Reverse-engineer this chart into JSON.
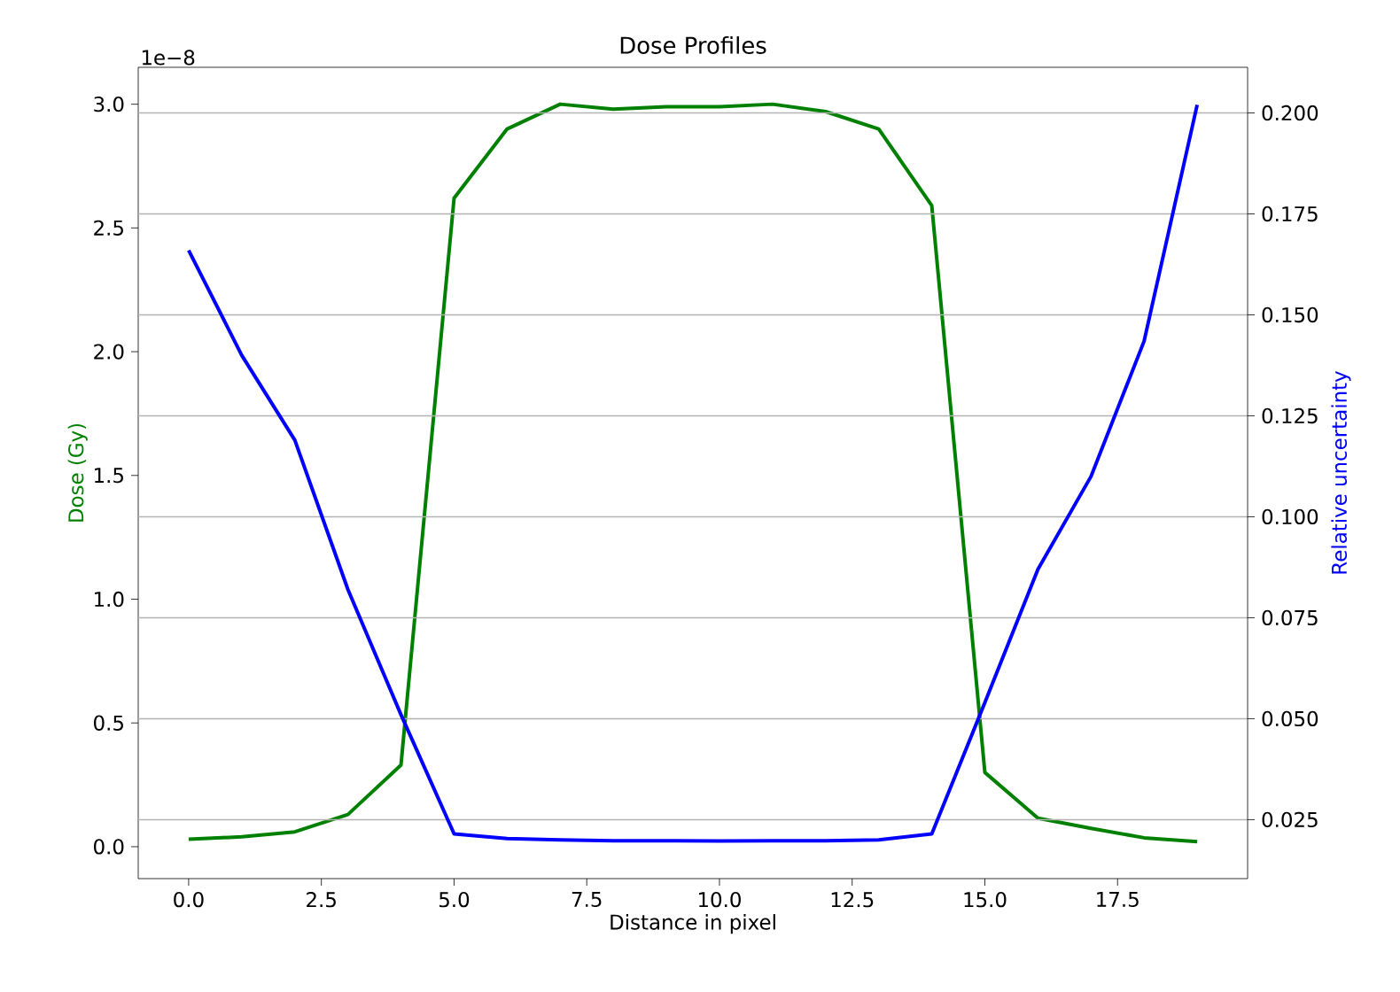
{
  "chart_data": {
    "type": "line",
    "title": "Dose Profiles",
    "xlabel": "Distance in pixel",
    "ylabel": "Dose (Gy)",
    "y2label": "Relative uncertainty",
    "annotations": [
      "1e−8"
    ],
    "x": [
      0,
      1,
      2,
      3,
      4,
      5,
      6,
      7,
      8,
      9,
      10,
      11,
      12,
      13,
      14,
      15,
      16,
      17,
      18,
      19
    ],
    "series": [
      {
        "color": "#008000",
        "values": [
          0.03,
          0.04,
          0.06,
          0.13,
          0.33,
          2.62,
          2.9,
          3.0,
          2.98,
          2.99,
          2.99,
          3.0,
          2.97,
          2.9,
          2.59,
          0.3,
          0.115,
          0.074,
          0.036,
          0.02
        ]
      },
      {
        "color": "#0000ff",
        "axis": "y2",
        "values": [
          0.166,
          0.14,
          0.119,
          0.082,
          0.051,
          0.0215,
          0.0203,
          0.02,
          0.0198,
          0.0198,
          0.0197,
          0.0198,
          0.0198,
          0.02,
          0.0215,
          0.054,
          0.087,
          0.11,
          0.1435,
          0.202
        ]
      }
    ],
    "xlim": [
      -0.95,
      19.95
    ],
    "ylim": [
      -0.129,
      3.149
    ],
    "y2lim": [
      0.0104,
      0.2113
    ],
    "xticks": [
      {
        "value": 0,
        "label": "0.0"
      },
      2.5,
      {
        "value": 5,
        "label": "5.0"
      },
      7.5,
      {
        "value": 10,
        "label": "10.0"
      },
      12.5,
      {
        "value": 15,
        "label": "15.0"
      },
      17.5
    ],
    "yticks": [
      {
        "value": 0,
        "label": "0.0"
      },
      0.5,
      {
        "value": 1,
        "label": "1.0"
      },
      1.5,
      {
        "value": 2,
        "label": "2.0"
      },
      2.5,
      {
        "value": 3,
        "label": "3.0"
      }
    ],
    "y2ticks": [
      0.025,
      {
        "value": 0.05,
        "label": "0.050"
      },
      0.075,
      {
        "value": 0.1,
        "label": "0.100"
      },
      0.125,
      {
        "value": 0.15,
        "label": "0.150"
      },
      0.175,
      {
        "value": 0.2,
        "label": "0.200"
      }
    ],
    "grid": "y",
    "line_style": "solid",
    "marker": "none"
  }
}
